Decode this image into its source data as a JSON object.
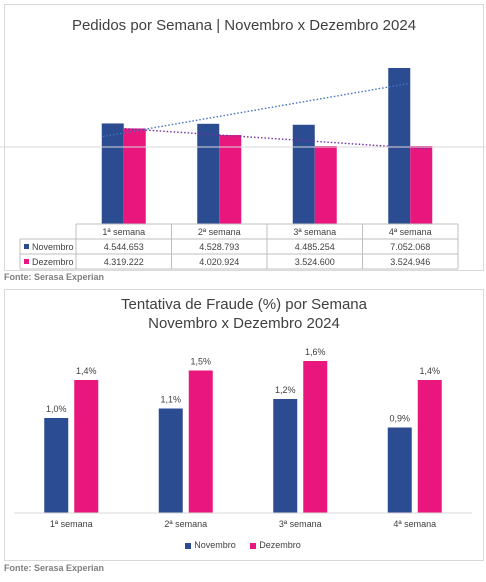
{
  "colors": {
    "novembro": "#2b4c91",
    "dezembro": "#e8167d",
    "trend_nov": "#4472c4",
    "trend_dez": "#7030a0"
  },
  "chart_data": [
    {
      "type": "bar",
      "title": "Pedidos por Semana | Novembro x Dezembro 2024",
      "categories": [
        "1ª semana",
        "2ª semana",
        "3ª semana",
        "4ª semana"
      ],
      "series": [
        {
          "name": "Novembro",
          "values": [
            4544653,
            4528793,
            4485254,
            7052068
          ],
          "labels": [
            "4.544.653",
            "4.528.793",
            "4.485.254",
            "7.052.068"
          ]
        },
        {
          "name": "Dezembro",
          "values": [
            4319222,
            4020924,
            3524600,
            3524946
          ],
          "labels": [
            "4.319.222",
            "4.020.924",
            "3.524.600",
            "3.524.946"
          ]
        }
      ],
      "trendlines": true,
      "data_table": true,
      "ylim": [
        0,
        8000000
      ]
    },
    {
      "type": "bar",
      "title": [
        "Tentativa de Fraude (%) por Semana",
        "Novembro x Dezembro 2024"
      ],
      "categories": [
        "1ª semana",
        "2ª semana",
        "3ª semana",
        "4ª semana"
      ],
      "series": [
        {
          "name": "Novembro",
          "values": [
            1.0,
            1.1,
            1.2,
            0.9
          ],
          "labels": [
            "1,0%",
            "1,1%",
            "1,2%",
            "0,9%"
          ]
        },
        {
          "name": "Dezembro",
          "values": [
            1.4,
            1.5,
            1.6,
            1.4
          ],
          "labels": [
            "1,4%",
            "1,5%",
            "1,6%",
            "1,4%"
          ]
        }
      ],
      "legend": "bottom",
      "ylim": [
        0,
        1.6
      ]
    }
  ],
  "sources": [
    "Fonte: Serasa Experian",
    "Fonte: Serasa Experian"
  ]
}
